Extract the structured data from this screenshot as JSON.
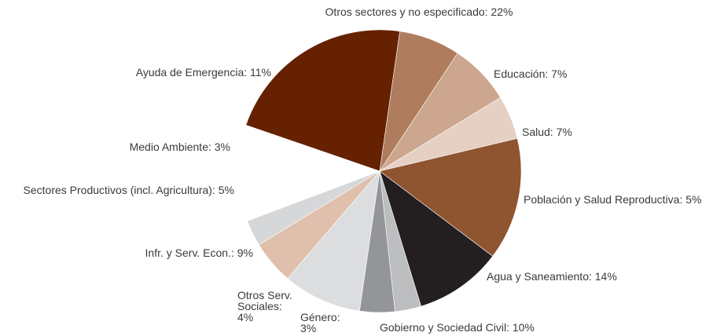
{
  "chart_data": {
    "type": "pie",
    "slices": [
      {
        "name": "Otros sectores y no especificado",
        "label": "Otros sectores y no especificado: 22%",
        "value": 22,
        "color": "#652100"
      },
      {
        "name": "Educación",
        "label": "Educación: 7%",
        "value": 7,
        "color": "#AF7C5D"
      },
      {
        "name": "Salud",
        "label": "Salud: 7%",
        "value": 7,
        "color": "#CCA68F"
      },
      {
        "name": "Población y Salud Reproductiva",
        "label": "Población y Salud Reproductiva: 5%",
        "value": 5,
        "color": "#E5D0C3"
      },
      {
        "name": "Agua y Saneamiento",
        "label": "Agua y Saneamiento: 14%",
        "value": 14,
        "color": "#8F5430"
      },
      {
        "name": "Gobierno y Sociedad Civil",
        "label": "Gobierno y Sociedad Civil: 10%",
        "value": 10,
        "color": "#231F20"
      },
      {
        "name": "Género",
        "label": "Género:\n3%",
        "value": 3,
        "color": "#BDBEC0"
      },
      {
        "name": "Otros Serv. Sociales",
        "label": "Otros Serv.\nSociales:\n4%",
        "value": 4,
        "color": "#939598"
      },
      {
        "name": "Infr. y Serv. Econ.",
        "label": "Infr. y Serv. Econ.: 9%",
        "value": 9,
        "color": "#DCDDDE"
      },
      {
        "name": "Sectores Productivos (incl. Agricultura)",
        "label": "Sectores Productivos (incl. Agricultura): 5%",
        "value": 5,
        "color": "#E0C0AC"
      },
      {
        "name": "Medio Ambiente",
        "label": "Medio Ambiente: 3%",
        "value": 3,
        "color": "#D6D7D9"
      },
      {
        "name": "Ayuda de Emergencia",
        "label": "Ayuda de Emergencia: 11%",
        "value": 11,
        "color": "#FFFFFF"
      }
    ]
  }
}
